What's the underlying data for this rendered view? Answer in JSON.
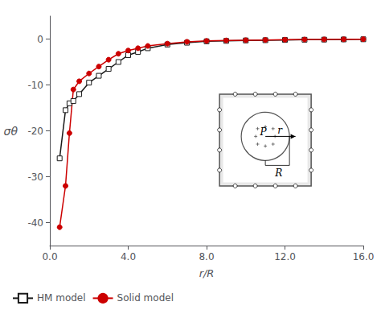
{
  "chart_data": {
    "type": "line",
    "xlabel": "r/R",
    "ylabel": "σθ",
    "xlim": [
      0.0,
      16.0
    ],
    "ylim": [
      -45,
      5
    ],
    "xticks": [
      {
        "value": 0.0,
        "label": "0.0"
      },
      {
        "value": 4.0,
        "label": "4.0"
      },
      {
        "value": 8.0,
        "label": "8.0"
      },
      {
        "value": 12.0,
        "label": "12.0"
      },
      {
        "value": 16.0,
        "label": "16.0"
      }
    ],
    "yticks": [
      0,
      -10,
      -20,
      -30,
      -40
    ],
    "grid": false,
    "legend": "lower left",
    "annotations": [
      "P",
      "r",
      "R"
    ],
    "series": [
      {
        "name": "HM model",
        "color": "#1a1a1a",
        "marker": "square_open",
        "line_style": "solid",
        "x": [
          0.5,
          0.8,
          1.0,
          1.2,
          1.5,
          2.0,
          2.5,
          3.0,
          3.5,
          4.0,
          4.5,
          5.0,
          6.0,
          7.0,
          8.0,
          9.0,
          10.0,
          11.0,
          12.0,
          13.0,
          14.0,
          15.0,
          16.0
        ],
        "values": [
          -26.0,
          -15.5,
          -14.0,
          -13.5,
          -12.0,
          -9.5,
          -8.0,
          -6.5,
          -5.0,
          -3.5,
          -2.8,
          -2.0,
          -1.2,
          -0.8,
          -0.5,
          -0.4,
          -0.3,
          -0.25,
          -0.2,
          -0.15,
          -0.12,
          -0.08,
          -0.05
        ]
      },
      {
        "name": "Solid model",
        "color": "#cc0000",
        "marker": "circle",
        "line_style": "solid",
        "x": [
          0.5,
          0.8,
          1.0,
          1.2,
          1.5,
          2.0,
          2.5,
          3.0,
          3.5,
          4.0,
          4.5,
          5.0,
          6.0,
          7.0,
          8.0,
          9.0,
          10.0,
          11.0,
          12.0,
          13.0,
          14.0,
          15.0,
          16.0
        ],
        "values": [
          -41.0,
          -32.0,
          -20.5,
          -11.0,
          -9.2,
          -7.5,
          -6.0,
          -4.5,
          -3.2,
          -2.5,
          -2.0,
          -1.5,
          -1.0,
          -0.6,
          -0.4,
          -0.3,
          -0.25,
          -0.2,
          -0.15,
          -0.1,
          -0.08,
          -0.05,
          -0.03
        ]
      }
    ]
  }
}
